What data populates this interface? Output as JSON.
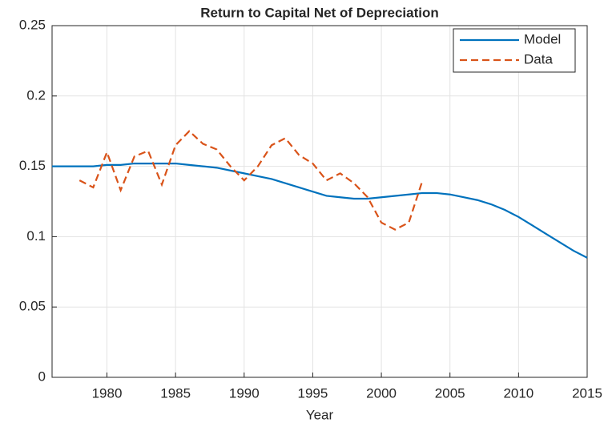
{
  "chart_data": {
    "type": "line",
    "title": "Return to Capital Net of Depreciation",
    "x_label": "Year",
    "x": [
      1976,
      1977,
      1978,
      1979,
      1980,
      1981,
      1982,
      1983,
      1984,
      1985,
      1986,
      1987,
      1988,
      1989,
      1990,
      1991,
      1992,
      1993,
      1994,
      1995,
      1996,
      1997,
      1998,
      1999,
      2000,
      2001,
      2002,
      2003,
      2004,
      2005,
      2006,
      2007,
      2008,
      2009,
      2010,
      2011,
      2012,
      2013,
      2014,
      2015
    ],
    "series": [
      {
        "name": "Model",
        "color": "#0072bd",
        "style": "solid",
        "values": [
          0.15,
          0.15,
          0.15,
          0.15,
          0.151,
          0.151,
          0.152,
          0.152,
          0.152,
          0.152,
          0.151,
          0.15,
          0.149,
          0.147,
          0.145,
          0.143,
          0.141,
          0.138,
          0.135,
          0.132,
          0.129,
          0.128,
          0.127,
          0.127,
          0.128,
          0.129,
          0.13,
          0.131,
          0.131,
          0.13,
          0.128,
          0.126,
          0.123,
          0.119,
          0.114,
          0.108,
          0.102,
          0.096,
          0.09,
          0.085
        ]
      },
      {
        "name": "Data",
        "color": "#d95319",
        "style": "dashed",
        "values": [
          null,
          null,
          0.14,
          0.135,
          0.16,
          0.133,
          0.157,
          0.161,
          0.137,
          0.165,
          0.175,
          0.166,
          0.162,
          0.15,
          0.14,
          0.15,
          0.165,
          0.17,
          0.158,
          0.152,
          0.14,
          0.145,
          0.138,
          0.128,
          0.11,
          0.105,
          0.11,
          0.14,
          null,
          null,
          null,
          null,
          null,
          null,
          null,
          null,
          null,
          null,
          null,
          null
        ]
      }
    ],
    "xlim": [
      1976,
      2015
    ],
    "xticks": [
      1980,
      1985,
      1990,
      1995,
      2000,
      2005,
      2010,
      2015
    ],
    "ylim": [
      0,
      0.25
    ],
    "yticks": [
      0,
      0.05,
      0.1,
      0.15,
      0.2,
      0.25
    ],
    "grid": true,
    "legend": "top-right"
  }
}
